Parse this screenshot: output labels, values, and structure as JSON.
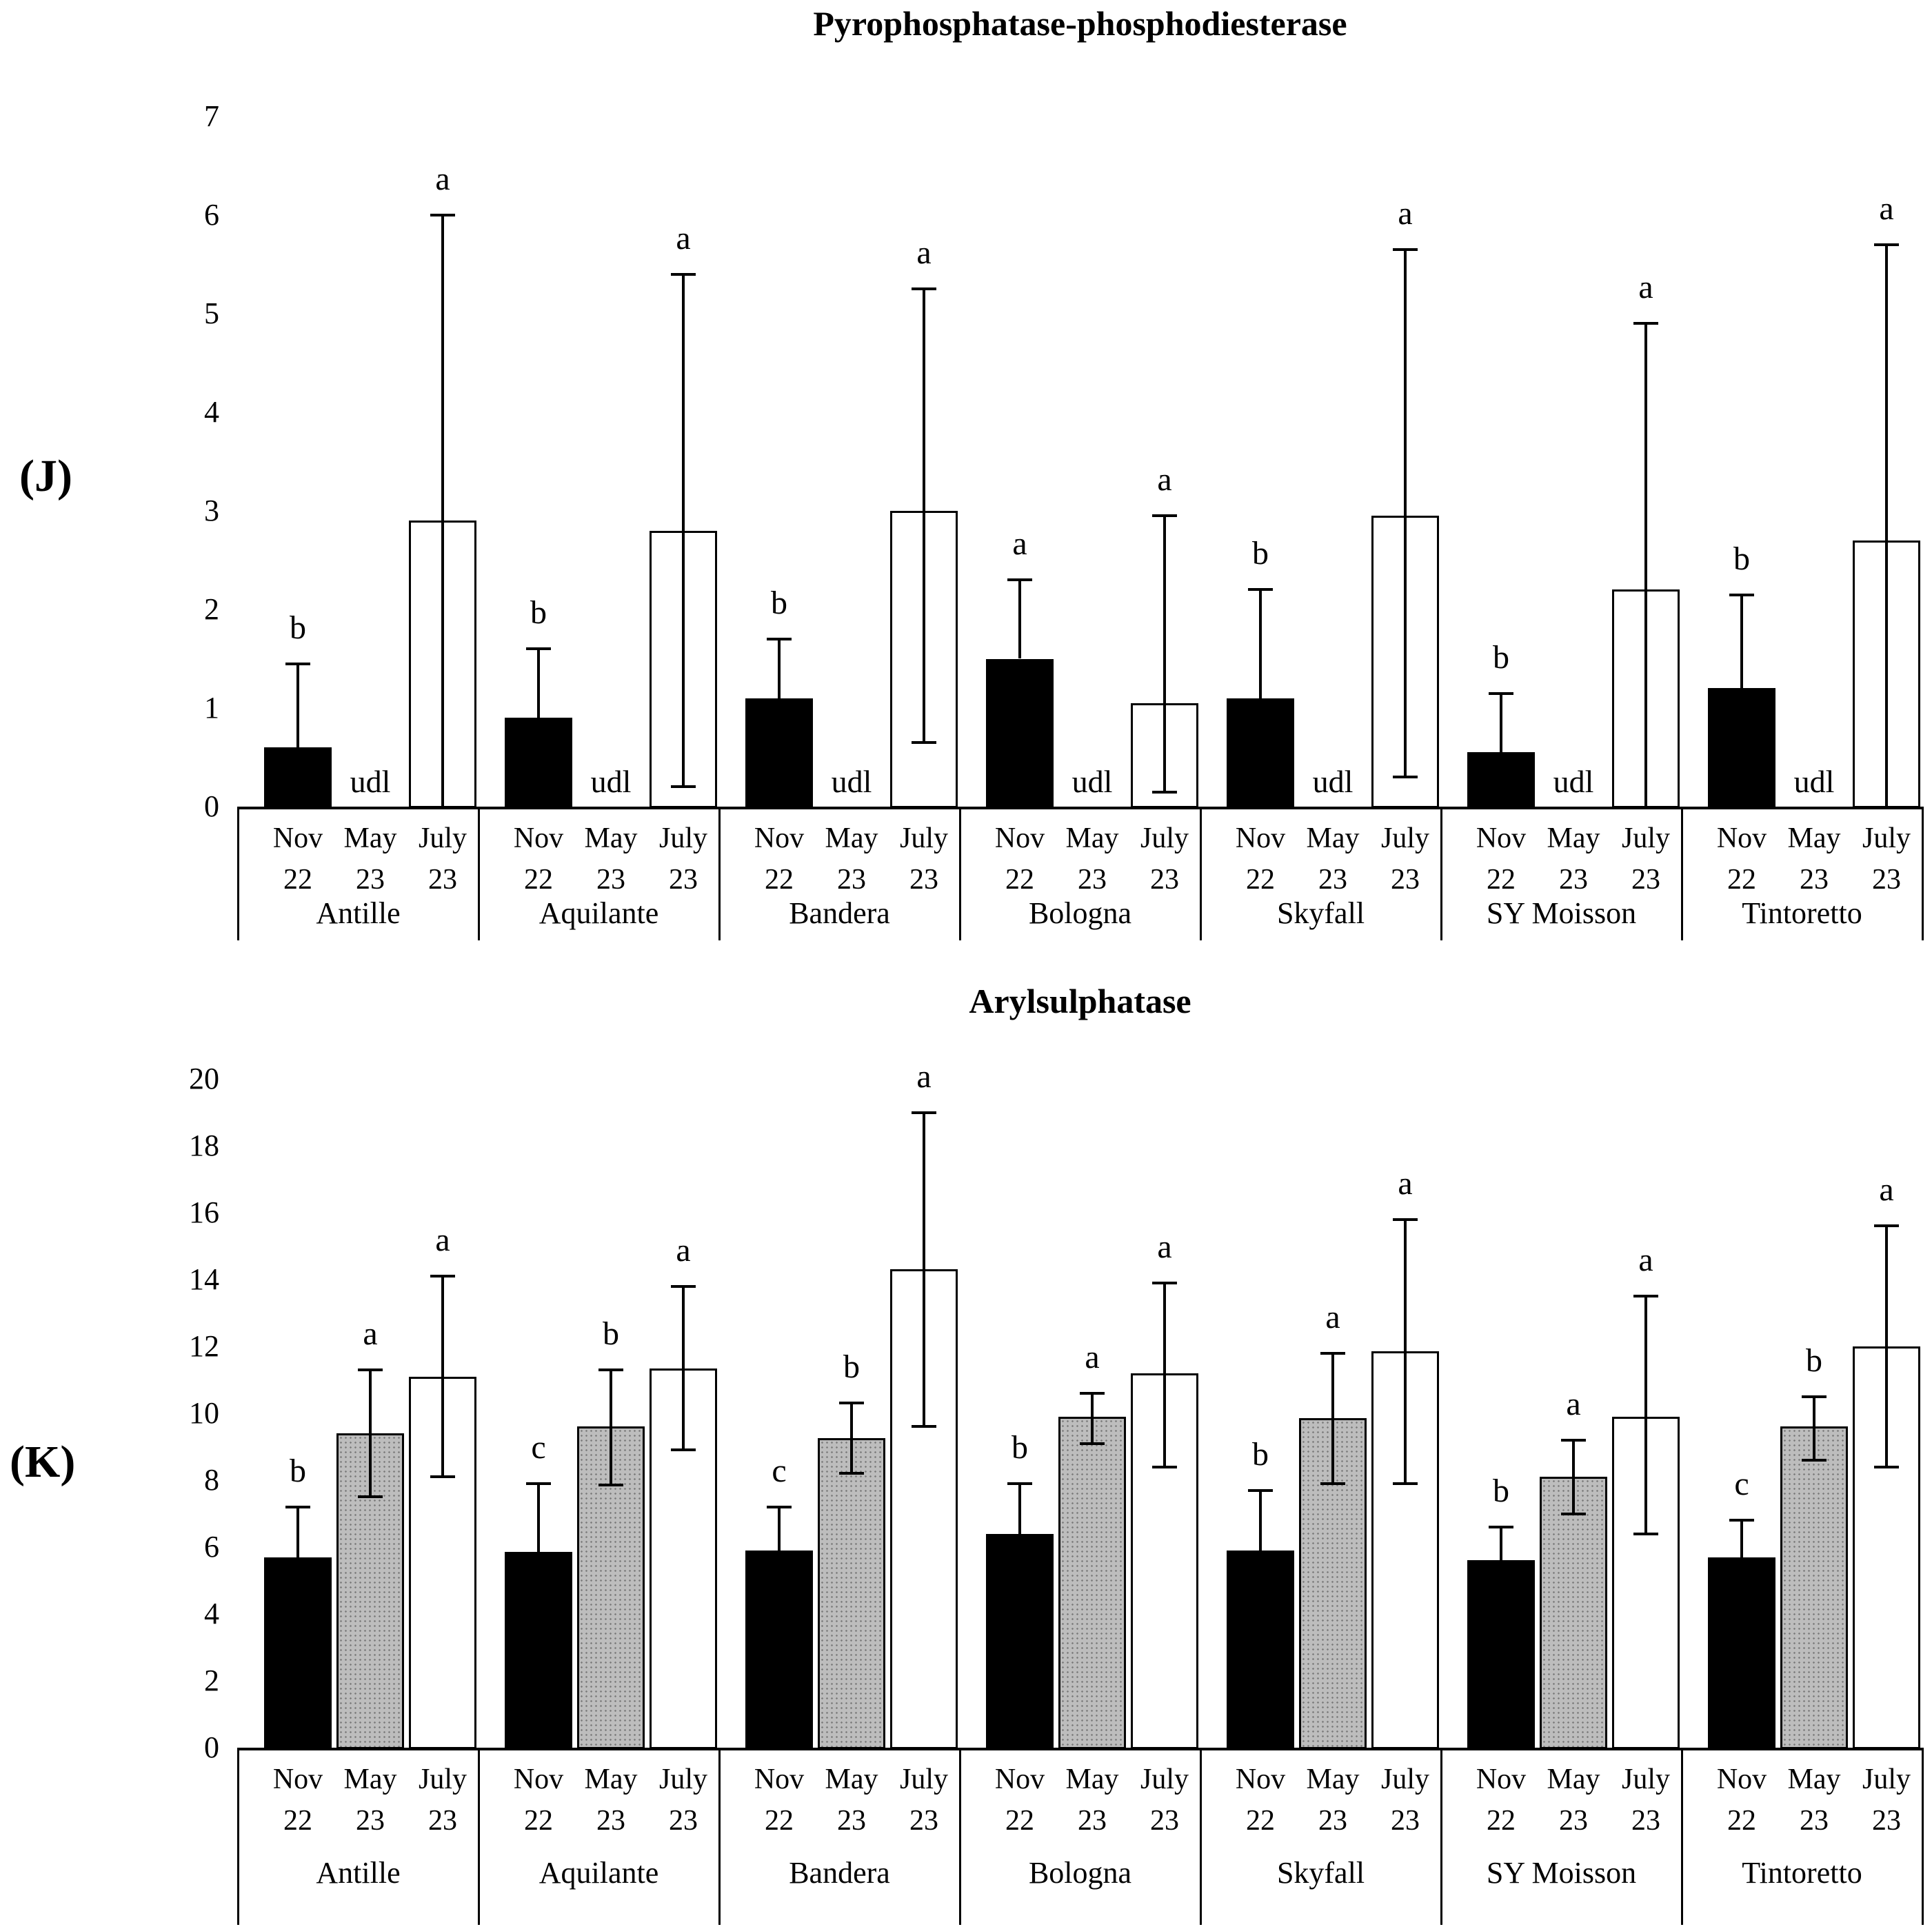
{
  "figure": {
    "background": "#ffffff",
    "bar_outline_color": "#000000",
    "bar_fill_colors": {
      "black": "#000000",
      "gray": "#bdbdbd",
      "white": "#ffffff"
    }
  },
  "chart_data": [
    {
      "type": "bar",
      "panel_label": "(J)",
      "title": "Pyrophosphatase-phosphodiesterase",
      "xlabel": "",
      "ylabel": "",
      "ylim": [
        0,
        7
      ],
      "ytick_step": 1,
      "ytick_labels": [
        "0",
        "1",
        "2",
        "3",
        "4",
        "5",
        "6",
        "7"
      ],
      "grid": false,
      "legend_position": "none",
      "categories": [
        "Antille",
        "Aquilante",
        "Bandera",
        "Bologna",
        "Skyfall",
        "SY Moisson",
        "Tintoretto"
      ],
      "x_slot_labels": [
        [
          "Nov",
          "22"
        ],
        [
          "May",
          "23"
        ],
        [
          "July",
          "23"
        ]
      ],
      "series": [
        {
          "name": "Nov 22",
          "fill": "black",
          "values": [
            0.6,
            0.9,
            1.1,
            1.5,
            1.1,
            0.55,
            1.2
          ],
          "err_hi": [
            1.45,
            1.6,
            1.7,
            2.3,
            2.2,
            1.15,
            2.15
          ],
          "err_lo": [
            null,
            null,
            null,
            null,
            null,
            null,
            null
          ],
          "sig": [
            "b",
            "b",
            "b",
            "a",
            "b",
            "b",
            "b"
          ]
        },
        {
          "name": "May 23",
          "fill": "white",
          "values": [
            null,
            null,
            null,
            null,
            null,
            null,
            null
          ],
          "err_hi": [
            null,
            null,
            null,
            null,
            null,
            null,
            null
          ],
          "err_lo": [
            null,
            null,
            null,
            null,
            null,
            null,
            null
          ],
          "sig": [
            null,
            null,
            null,
            null,
            null,
            null,
            null
          ],
          "udl_label": "udl",
          "udl": [
            true,
            true,
            true,
            true,
            true,
            true,
            true
          ]
        },
        {
          "name": "July 23",
          "fill": "white",
          "values": [
            2.9,
            2.8,
            3.0,
            1.05,
            2.95,
            2.2,
            2.7
          ],
          "err_hi": [
            6.0,
            5.4,
            5.25,
            2.95,
            5.65,
            4.9,
            5.7
          ],
          "err_lo": [
            null,
            0.2,
            0.65,
            0.15,
            0.3,
            null,
            null
          ],
          "sig": [
            "a",
            "a",
            "a",
            "a",
            "a",
            "a",
            "a"
          ]
        }
      ]
    },
    {
      "type": "bar",
      "panel_label": "(K)",
      "title": "Arylsulphatase",
      "xlabel": "",
      "ylabel": "",
      "ylim": [
        0,
        20
      ],
      "ytick_step": 2,
      "ytick_labels": [
        "0",
        "2",
        "4",
        "6",
        "8",
        "10",
        "12",
        "14",
        "16",
        "18",
        "20"
      ],
      "grid": false,
      "legend_position": "none",
      "categories": [
        "Antille",
        "Aquilante",
        "Bandera",
        "Bologna",
        "Skyfall",
        "SY Moisson",
        "Tintoretto"
      ],
      "x_slot_labels": [
        [
          "Nov",
          "22"
        ],
        [
          "May",
          "23"
        ],
        [
          "July",
          "23"
        ]
      ],
      "series": [
        {
          "name": "Nov 22",
          "fill": "black",
          "values": [
            5.7,
            5.85,
            5.9,
            6.4,
            5.9,
            5.6,
            5.7
          ],
          "err_hi": [
            7.2,
            7.9,
            7.2,
            7.9,
            7.7,
            6.6,
            6.8
          ],
          "err_lo": [
            null,
            null,
            null,
            null,
            null,
            null,
            null
          ],
          "sig": [
            "b",
            "c",
            "c",
            "b",
            "b",
            "b",
            "c"
          ]
        },
        {
          "name": "May 23",
          "fill": "gray",
          "values": [
            9.4,
            9.6,
            9.25,
            9.9,
            9.85,
            8.1,
            9.6
          ],
          "err_hi": [
            11.3,
            11.3,
            10.3,
            10.6,
            11.8,
            9.2,
            10.5
          ],
          "err_lo": [
            7.5,
            7.85,
            8.2,
            9.1,
            7.9,
            7.0,
            8.6
          ],
          "sig": [
            "a",
            "b",
            "b",
            "a",
            "a",
            "a",
            "b"
          ]
        },
        {
          "name": "July 23",
          "fill": "white",
          "values": [
            11.1,
            11.35,
            14.3,
            11.2,
            11.85,
            9.9,
            12.0
          ],
          "err_hi": [
            14.1,
            13.8,
            19.0,
            13.9,
            15.8,
            13.5,
            15.6
          ],
          "err_lo": [
            8.1,
            8.9,
            9.6,
            8.4,
            7.9,
            6.4,
            8.4
          ],
          "sig": [
            "a",
            "a",
            "a",
            "a",
            "a",
            "a",
            "a"
          ]
        }
      ]
    }
  ]
}
